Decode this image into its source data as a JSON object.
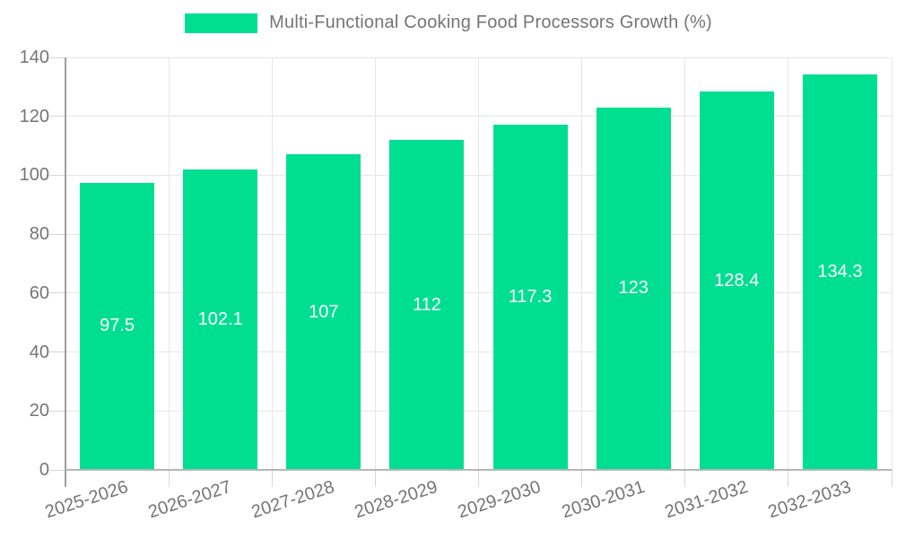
{
  "chart_data": {
    "type": "bar",
    "title": "Multi-Functional Cooking Food Processors Growth (%)",
    "categories": [
      "2025-2026",
      "2026-2027",
      "2027-2028",
      "2028-2029",
      "2029-2030",
      "2030-2031",
      "2031-2032",
      "2032-2033"
    ],
    "values": [
      97.5,
      102.1,
      107,
      112,
      117.3,
      123,
      128.4,
      134.3
    ],
    "value_labels": [
      "97.5",
      "102.1",
      "107",
      "112",
      "117.3",
      "123",
      "128.4",
      "134.3"
    ],
    "xlabel": "",
    "ylabel": "",
    "ylim": [
      0,
      140
    ],
    "yticks": [
      0,
      20,
      40,
      60,
      80,
      100,
      120,
      140
    ],
    "grid": true,
    "legend_position": "top",
    "bar_color": "#00de92",
    "bar_value_text_color": "#ffffff",
    "axis_text_color": "#757575",
    "gridline_color": "#e6e6e6"
  }
}
